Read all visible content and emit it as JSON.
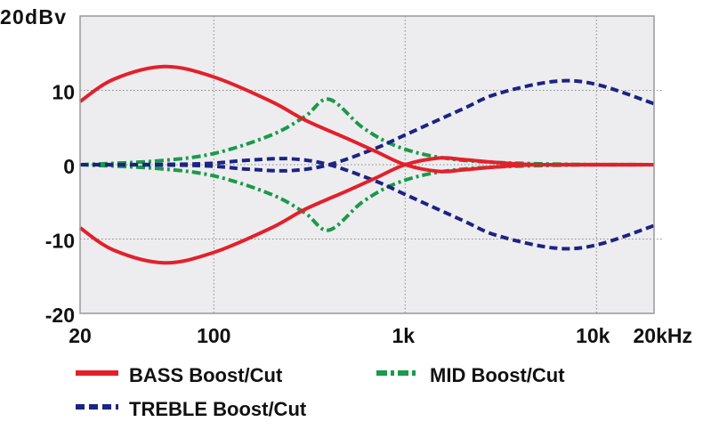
{
  "chart_data": {
    "type": "line",
    "title": "",
    "ylabel": "20dBv",
    "xlabel": "",
    "x_scale": "log",
    "xlim": [
      20,
      20000
    ],
    "ylim": [
      -20,
      20
    ],
    "grid": true,
    "x_ticks": [
      {
        "value": 20,
        "label": "20"
      },
      {
        "value": 100,
        "label": "100"
      },
      {
        "value": 1000,
        "label": "1k"
      },
      {
        "value": 10000,
        "label": "10k"
      },
      {
        "value": 20000,
        "label": "20kHz"
      }
    ],
    "y_ticks": [
      {
        "value": 20,
        "label": "20dBv"
      },
      {
        "value": 10,
        "label": "10"
      },
      {
        "value": 0,
        "label": "0"
      },
      {
        "value": -10,
        "label": "-10"
      },
      {
        "value": -20,
        "label": "-20"
      }
    ],
    "background": "#ededf0",
    "legend_placement": "bottom",
    "legend": [
      {
        "label": "BASS Boost/Cut",
        "color": "#e3202a",
        "style": "solid"
      },
      {
        "label": "MID Boost/Cut",
        "color": "#1a9a4a",
        "style": "dash-dot"
      },
      {
        "label": "TREBLE Boost/Cut",
        "color": "#1c2383",
        "style": "dashed"
      }
    ],
    "series": [
      {
        "group": "BASS Boost/Cut",
        "color": "#e3202a",
        "style": "solid",
        "x": [
          20,
          30,
          55,
          100,
          200,
          300,
          500,
          700,
          1000,
          1500,
          2000,
          3000,
          5000,
          20000
        ],
        "y": [
          8.5,
          11.5,
          13.2,
          11.8,
          8.5,
          6,
          3.5,
          1.8,
          0,
          -0.9,
          -0.7,
          -0.3,
          0,
          0
        ]
      },
      {
        "group": "BASS Boost/Cut",
        "color": "#e3202a",
        "style": "solid",
        "x": [
          20,
          30,
          55,
          100,
          200,
          300,
          500,
          700,
          1000,
          1500,
          2000,
          3000,
          5000,
          20000
        ],
        "y": [
          -8.5,
          -11.5,
          -13.2,
          -11.8,
          -8.5,
          -6,
          -3.5,
          -1.8,
          0,
          0.9,
          0.7,
          0.3,
          0,
          0
        ]
      },
      {
        "group": "MID Boost/Cut",
        "color": "#1a9a4a",
        "style": "dash-dot",
        "x": [
          20,
          50,
          100,
          200,
          300,
          400,
          600,
          900,
          1500,
          3000,
          10000,
          20000
        ],
        "y": [
          0,
          0.5,
          1.5,
          4,
          6.5,
          8.8,
          5,
          2.5,
          1,
          0.3,
          0,
          0
        ]
      },
      {
        "group": "MID Boost/Cut",
        "color": "#1a9a4a",
        "style": "dash-dot",
        "x": [
          20,
          50,
          100,
          200,
          300,
          400,
          600,
          900,
          1500,
          3000,
          10000,
          20000
        ],
        "y": [
          0,
          -0.5,
          -1.5,
          -4,
          -6.5,
          -8.8,
          -5,
          -2.5,
          -1,
          -0.3,
          0,
          0
        ]
      },
      {
        "group": "TREBLE Boost/Cut",
        "color": "#1c2383",
        "style": "dashed",
        "x": [
          20,
          80,
          150,
          250,
          400,
          700,
          1000,
          2000,
          3000,
          6000,
          10000,
          20000
        ],
        "y": [
          0,
          -0.1,
          -0.6,
          -0.8,
          0,
          2.2,
          4,
          7.5,
          9.5,
          11.2,
          10.8,
          8.2
        ]
      },
      {
        "group": "TREBLE Boost/Cut",
        "color": "#1c2383",
        "style": "dashed",
        "x": [
          20,
          80,
          150,
          250,
          400,
          700,
          1000,
          2000,
          3000,
          6000,
          10000,
          20000
        ],
        "y": [
          0,
          0.1,
          0.6,
          0.8,
          0,
          -2.2,
          -4,
          -7.5,
          -9.5,
          -11.2,
          -10.8,
          -8.2
        ]
      }
    ]
  }
}
